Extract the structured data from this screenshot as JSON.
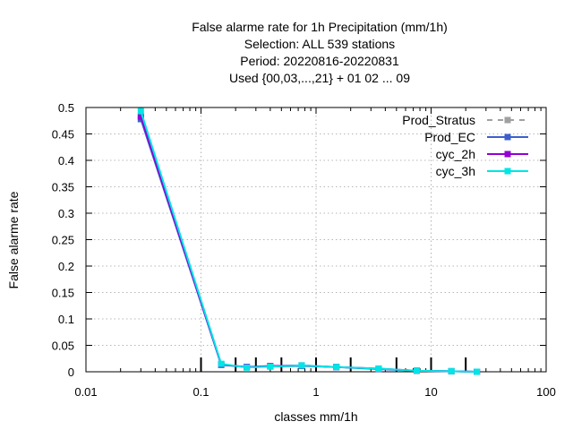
{
  "chart_data": {
    "type": "line",
    "title_lines": [
      "False alarme rate  for 1h Precipitation (mm/1h)",
      "Selection: ALL    539 stations",
      "Period: 20220816-20220831",
      "Used {00,03,...,21} + 01 02 ... 09"
    ],
    "xlabel": "classes mm/1h",
    "ylabel": "False alarme rate",
    "x_scale": "log",
    "xlim": [
      0.01,
      100
    ],
    "ylim": [
      0,
      0.5
    ],
    "x_ticks": [
      {
        "value": 0.01,
        "label": "0.01"
      },
      {
        "value": 0.1,
        "label": "0.1"
      },
      {
        "value": 1,
        "label": "1"
      },
      {
        "value": 10,
        "label": "10"
      },
      {
        "value": 100,
        "label": "100"
      }
    ],
    "y_ticks": [
      {
        "value": 0,
        "label": "0"
      },
      {
        "value": 0.05,
        "label": "0.05"
      },
      {
        "value": 0.1,
        "label": "0.1"
      },
      {
        "value": 0.15,
        "label": "0.15"
      },
      {
        "value": 0.2,
        "label": "0.2"
      },
      {
        "value": 0.25,
        "label": "0.25"
      },
      {
        "value": 0.3,
        "label": "0.3"
      },
      {
        "value": 0.35,
        "label": "0.35"
      },
      {
        "value": 0.4,
        "label": "0.4"
      },
      {
        "value": 0.45,
        "label": "0.45"
      },
      {
        "value": 0.5,
        "label": "0.5"
      }
    ],
    "grid": true,
    "class_threshold_marks": [
      0.1,
      0.2,
      0.3,
      0.5,
      1,
      2,
      5,
      10,
      20
    ],
    "legend_position": "top-right",
    "x": [
      0.03,
      0.15,
      0.25,
      0.4,
      0.75,
      1.5,
      3.5,
      7.5,
      15,
      25
    ],
    "series": [
      {
        "name": "Prod_Stratus",
        "color": "#a0a0a0",
        "dashed": true,
        "values": [
          null,
          null,
          null,
          null,
          null,
          null,
          null,
          null,
          null,
          null
        ]
      },
      {
        "name": "Prod_EC",
        "color": "#3d5fcd",
        "dashed": false,
        "values": [
          0.478,
          0.013,
          0.009,
          0.01,
          0.011,
          0.009,
          0.005,
          0.002,
          0.001,
          0.0
        ]
      },
      {
        "name": "cyc_2h",
        "color": "#9400d3",
        "dashed": false,
        "values": [
          0.483,
          0.014,
          0.009,
          0.011,
          0.012,
          0.009,
          0.006,
          0.002,
          0.001,
          0.0
        ]
      },
      {
        "name": "cyc_3h",
        "color": "#00e5e5",
        "dashed": false,
        "values": [
          0.493,
          0.015,
          0.008,
          0.01,
          0.012,
          0.009,
          0.006,
          0.002,
          0.001,
          0.0
        ]
      }
    ]
  }
}
